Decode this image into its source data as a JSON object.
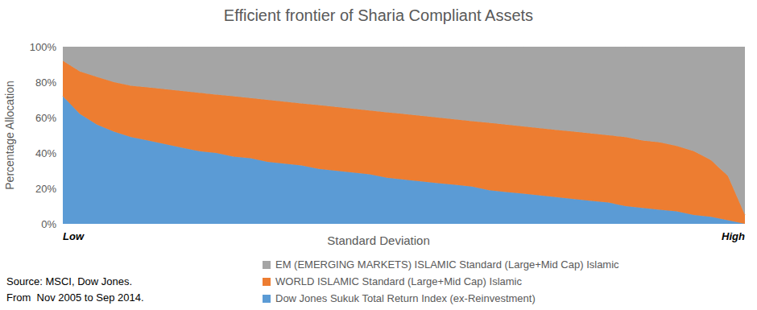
{
  "chart_data": {
    "type": "area",
    "title": "Efficient frontier of Sharia Compliant Assets",
    "x_label": "Standard Deviation",
    "y_label": "Percentage Allocation",
    "stacked": true,
    "grid": false,
    "legend": "bottom",
    "annotations": [
      "Source: MSCI, Dow Jones.",
      "From  Nov 2005 to Sep 2014."
    ],
    "categories": [
      "Low",
      null,
      null,
      null,
      null,
      null,
      null,
      null,
      null,
      null,
      null,
      null,
      null,
      null,
      null,
      null,
      null,
      null,
      null,
      null,
      null,
      null,
      null,
      null,
      null,
      null,
      null,
      null,
      null,
      null,
      null,
      null,
      null,
      null,
      null,
      null,
      null,
      null,
      null,
      null,
      "High"
    ],
    "ylim": [
      0,
      100
    ],
    "yticks": [
      {
        "value": 0,
        "label": "0%"
      },
      {
        "value": 20,
        "label": "20%"
      },
      {
        "value": 40,
        "label": "40%"
      },
      {
        "value": 60,
        "label": "60%"
      },
      {
        "value": 80,
        "label": "80%"
      },
      {
        "value": 100,
        "label": "100%"
      }
    ],
    "series": [
      {
        "name": "Dow Jones Sukuk Total Return Index (ex-Reinvestment)",
        "color": "#5b9bd5",
        "values": [
          72,
          62,
          56,
          52,
          49,
          47,
          45,
          43,
          41,
          40,
          38,
          37,
          35,
          34,
          33,
          31,
          30,
          29,
          28,
          26,
          25,
          24,
          23,
          22,
          21,
          19,
          18,
          17,
          16,
          15,
          14,
          13,
          12,
          10,
          9,
          8,
          7,
          5,
          4,
          2,
          0
        ]
      },
      {
        "name": "WORLD ISLAMIC Standard (Large+Mid Cap) Islamic",
        "color": "#ed7d31",
        "values": [
          20,
          24,
          27,
          28,
          29,
          30,
          31,
          32,
          33,
          33,
          34,
          34,
          35,
          35,
          35,
          36,
          36,
          36,
          36,
          37,
          37,
          37,
          37,
          37,
          37,
          38,
          38,
          38,
          38,
          38,
          38,
          38,
          38,
          39,
          38,
          38,
          37,
          36,
          32,
          25,
          5
        ]
      },
      {
        "name": "EM (EMERGING MARKETS) ISLAMIC Standard (Large+Mid Cap) Islamic",
        "color": "#a5a5a5",
        "values": [
          8,
          14,
          17,
          20,
          22,
          23,
          24,
          25,
          26,
          27,
          28,
          29,
          30,
          31,
          32,
          33,
          34,
          35,
          36,
          37,
          38,
          39,
          40,
          41,
          42,
          43,
          44,
          45,
          46,
          47,
          48,
          49,
          50,
          51,
          53,
          54,
          56,
          59,
          64,
          73,
          95
        ]
      }
    ]
  }
}
